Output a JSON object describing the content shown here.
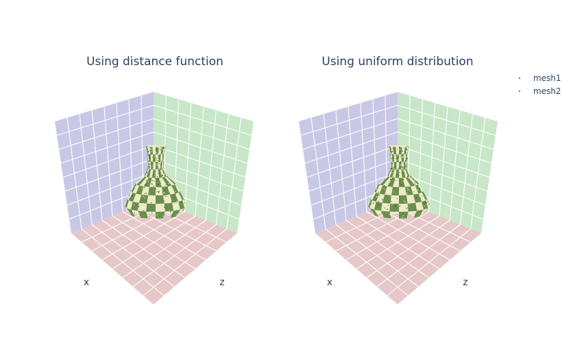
{
  "chart_data": [
    {
      "type": "scatter3d",
      "title": "Using distance function",
      "axes": {
        "x": "x",
        "y": "",
        "z": "z"
      },
      "series": [
        "mesh1",
        "mesh2"
      ],
      "object": "checkered vase point cloud"
    },
    {
      "type": "scatter3d",
      "title": "Using uniform distribution",
      "axes": {
        "x": "x",
        "y": "",
        "z": "z"
      },
      "series": [
        "mesh1",
        "mesh2"
      ],
      "object": "checkered vase point cloud"
    }
  ],
  "legend": {
    "items": [
      {
        "name": "mesh1",
        "color": "#6b8e4e"
      },
      {
        "name": "mesh2",
        "color": "#6b8e4e"
      }
    ]
  },
  "colors": {
    "left_wall": "#c8c8e6",
    "right_wall": "#c8e6c8",
    "floor": "#e6c8c8",
    "grid": "#ffffff",
    "vase_green": "#6b8e4e",
    "vase_cream": "#ececc8",
    "vase_dark": "#334433"
  }
}
